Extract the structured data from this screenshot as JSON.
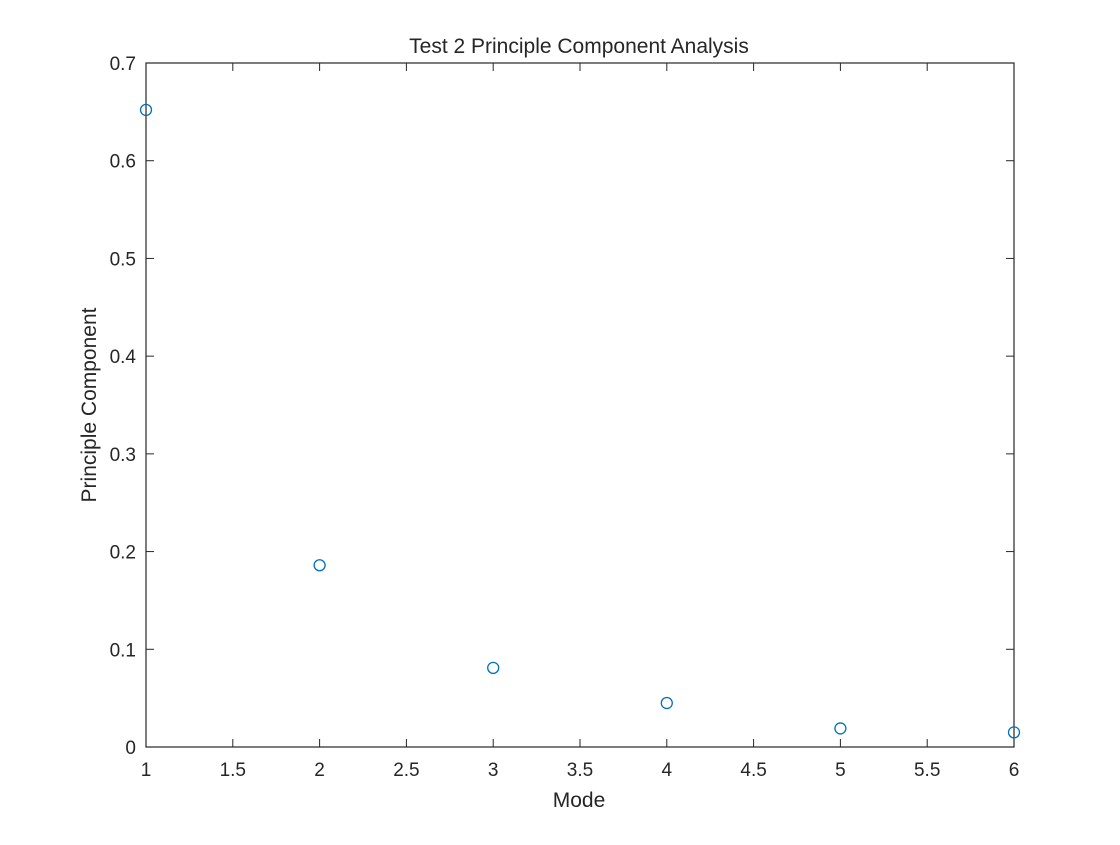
{
  "chart_data": {
    "type": "scatter",
    "title": "Test 2 Principle Component Analysis",
    "xlabel": "Mode",
    "ylabel": "Principle Component",
    "xlim": [
      1,
      6
    ],
    "ylim": [
      0,
      0.7
    ],
    "xticks": [
      "1",
      "1.5",
      "2",
      "2.5",
      "3",
      "3.5",
      "4",
      "4.5",
      "5",
      "5.5",
      "6"
    ],
    "yticks": [
      "0",
      "0.1",
      "0.2",
      "0.3",
      "0.4",
      "0.5",
      "0.6",
      "0.7"
    ],
    "grid": false,
    "marker": "circle-open",
    "marker_color": "#0072bd",
    "x": [
      1,
      2,
      3,
      4,
      5,
      6
    ],
    "y": [
      0.652,
      0.186,
      0.081,
      0.045,
      0.019,
      0.015
    ]
  },
  "style": {
    "axis_color": "#262626",
    "background": "#ffffff"
  }
}
